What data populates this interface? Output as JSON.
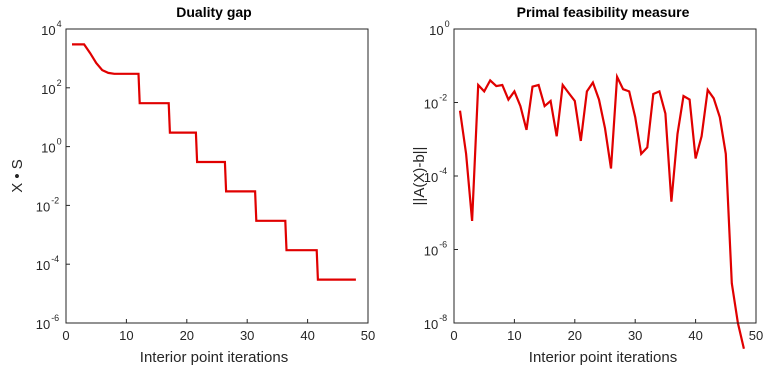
{
  "chart_data": [
    {
      "type": "line",
      "title": "Duality gap",
      "xlabel": "Interior point iterations",
      "ylabel": "X • S",
      "xlim": [
        0,
        50
      ],
      "ylim_exponents": [
        -6,
        4
      ],
      "yscale": "log",
      "xticks": [
        0,
        10,
        20,
        30,
        40,
        50
      ],
      "yticks": [
        {
          "base": "10",
          "exp": "-6"
        },
        {
          "base": "10",
          "exp": "-4"
        },
        {
          "base": "10",
          "exp": "-2"
        },
        {
          "base": "10",
          "exp": "0"
        },
        {
          "base": "10",
          "exp": "2"
        },
        {
          "base": "10",
          "exp": "4"
        }
      ],
      "grid": false,
      "series": [
        {
          "color": "#e00000",
          "x": [
            1,
            2,
            3,
            4,
            5,
            6,
            7,
            8,
            9,
            10,
            11,
            12,
            12.2,
            17,
            17.2,
            21.5,
            21.7,
            26.3,
            26.5,
            31.3,
            31.5,
            36.3,
            36.5,
            41.5,
            41.7,
            48
          ],
          "y": [
            3000,
            3000,
            3000,
            1500,
            700,
            400,
            320,
            300,
            300,
            300,
            300,
            300,
            30,
            30,
            3,
            3,
            0.3,
            0.3,
            0.03,
            0.03,
            0.003,
            0.003,
            0.0003,
            0.0003,
            3e-05,
            3e-05
          ]
        }
      ]
    },
    {
      "type": "line",
      "title": "Primal feasibility measure",
      "xlabel": "Interior point iterations",
      "ylabel": "||A(X)-b||",
      "xlim": [
        0,
        50
      ],
      "ylim_exponents": [
        -8,
        0
      ],
      "yscale": "log",
      "xticks": [
        0,
        10,
        20,
        30,
        40,
        50
      ],
      "yticks": [
        {
          "base": "10",
          "exp": "-8"
        },
        {
          "base": "10",
          "exp": "-6"
        },
        {
          "base": "10",
          "exp": "-4"
        },
        {
          "base": "10",
          "exp": "-2"
        },
        {
          "base": "10",
          "exp": "0"
        }
      ],
      "grid": false,
      "series": [
        {
          "color": "#e00000",
          "x": [
            1,
            2,
            3,
            4,
            5,
            6,
            7,
            8,
            9,
            10,
            11,
            12,
            13,
            14,
            15,
            16,
            17,
            18,
            19,
            20,
            21,
            22,
            23,
            24,
            25,
            26,
            27,
            28,
            29,
            30,
            31,
            32,
            33,
            34,
            35,
            36,
            37,
            38,
            39,
            40,
            41,
            42,
            43,
            44,
            45,
            46,
            47,
            48
          ],
          "y": [
            0.006,
            0.0004,
            6e-06,
            0.03,
            0.02,
            0.04,
            0.028,
            0.03,
            0.012,
            0.02,
            0.008,
            0.0018,
            0.027,
            0.03,
            0.008,
            0.011,
            0.0012,
            0.03,
            0.018,
            0.011,
            0.0009,
            0.02,
            0.035,
            0.012,
            0.002,
            0.00016,
            0.05,
            0.023,
            0.02,
            0.004,
            0.0004,
            0.0006,
            0.017,
            0.02,
            0.005,
            2e-05,
            0.0014,
            0.015,
            0.012,
            0.0003,
            0.0012,
            0.022,
            0.013,
            0.004,
            0.0004,
            1.2e-07,
            1e-08,
            2e-09
          ]
        }
      ]
    }
  ]
}
